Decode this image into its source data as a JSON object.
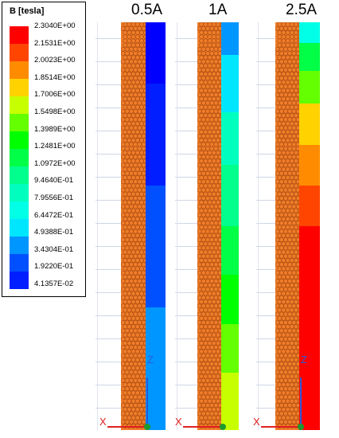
{
  "legend": {
    "title": "B [tesla]",
    "levels": [
      {
        "label": "2.3040E+00",
        "color": "#ff0000"
      },
      {
        "label": "2.1531E+00",
        "color": "#ff4500"
      },
      {
        "label": "2.0023E+00",
        "color": "#ff8c00"
      },
      {
        "label": "1.8514E+00",
        "color": "#ffd200"
      },
      {
        "label": "1.7006E+00",
        "color": "#c8ff00"
      },
      {
        "label": "1.5498E+00",
        "color": "#64ff00"
      },
      {
        "label": "1.3989E+00",
        "color": "#00ff00"
      },
      {
        "label": "1.2481E+00",
        "color": "#00ff46"
      },
      {
        "label": "1.0972E+00",
        "color": "#00ff8c"
      },
      {
        "label": "9.4640E-01",
        "color": "#00ffbe"
      },
      {
        "label": "7.9556E-01",
        "color": "#00ffe6"
      },
      {
        "label": "6.4472E-01",
        "color": "#00e6ff"
      },
      {
        "label": "4.9388E-01",
        "color": "#0096ff"
      },
      {
        "label": "3.4304E-01",
        "color": "#0050ff"
      },
      {
        "label": "1.9220E-01",
        "color": "#001eff"
      },
      {
        "label": "4.1357E-02",
        "color": "#0000ff"
      }
    ]
  },
  "panels": [
    {
      "title": "0.5A",
      "axis_z": "Z",
      "axis_x": "X",
      "bands": [
        {
          "level": 0.0,
          "color": "#0000ff"
        },
        {
          "level": 0.15,
          "color": "#001eff"
        },
        {
          "level": 0.4,
          "color": "#0050ff"
        },
        {
          "level": 0.7,
          "color": "#0096ff"
        },
        {
          "level": 1.0,
          "color": "#00e6ff"
        }
      ]
    },
    {
      "title": "1A",
      "axis_z": "",
      "axis_x": "X",
      "bands": [
        {
          "level": 0.0,
          "color": "#0096ff"
        },
        {
          "level": 0.08,
          "color": "#00e6ff"
        },
        {
          "level": 0.22,
          "color": "#00ffbe"
        },
        {
          "level": 0.35,
          "color": "#00ff8c"
        },
        {
          "level": 0.5,
          "color": "#00ff46"
        },
        {
          "level": 0.62,
          "color": "#00ff00"
        },
        {
          "level": 0.74,
          "color": "#64ff00"
        },
        {
          "level": 0.86,
          "color": "#c8ff00"
        },
        {
          "level": 1.0,
          "color": "#ffd200"
        }
      ]
    },
    {
      "title": "2.5A",
      "axis_z": "Z",
      "axis_x": "X",
      "bands": [
        {
          "level": 0.0,
          "color": "#00ffe6"
        },
        {
          "level": 0.05,
          "color": "#00ff46"
        },
        {
          "level": 0.12,
          "color": "#64ff00"
        },
        {
          "level": 0.2,
          "color": "#ffd200"
        },
        {
          "level": 0.3,
          "color": "#ff8c00"
        },
        {
          "level": 0.4,
          "color": "#ff4500"
        },
        {
          "level": 0.5,
          "color": "#ff0000"
        },
        {
          "level": 1.0,
          "color": "#ff0000"
        }
      ]
    }
  ]
}
